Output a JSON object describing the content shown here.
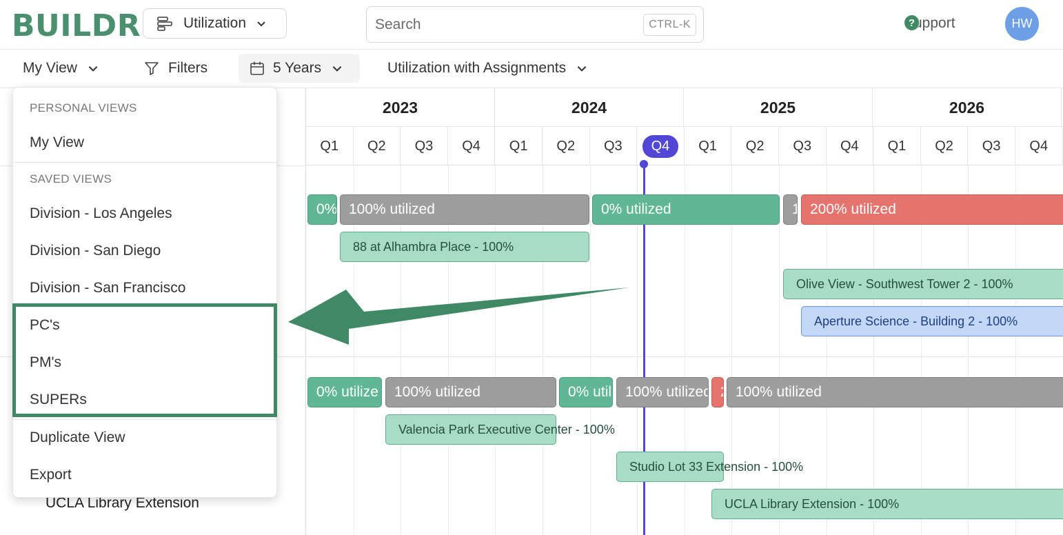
{
  "app": {
    "logo": "BUILDR",
    "module_select": "Utilization",
    "search_placeholder": "Search",
    "search_shortcut": "CTRL-K",
    "support": "Support",
    "avatar_initials": "HW"
  },
  "toolbar": {
    "view": "My View",
    "filters": "Filters",
    "range": "5 Years",
    "mode": "Utilization with Assignments"
  },
  "timeline": {
    "years": [
      "2023",
      "2024",
      "2025",
      "2026"
    ],
    "quarters": [
      "Q1",
      "Q2",
      "Q3",
      "Q4",
      "Q1",
      "Q2",
      "Q3",
      "Q4",
      "Q1",
      "Q2",
      "Q3",
      "Q4",
      "Q1",
      "Q2",
      "Q3",
      "Q4"
    ],
    "current_quarter_index": 7
  },
  "rows": {
    "row1_bars": [
      "0%",
      "100% utilized",
      "0% utilized",
      "1",
      "200% utilized"
    ],
    "row1_assignments": [
      "88 at Alhambra Place - 100%",
      "Olive View - Southwest Tower 2 - 100%",
      "Aperture Science - Building 2 - 100%"
    ],
    "row2_bars": [
      "0% utilize",
      "100% utilized",
      "0% util",
      "100% utilized",
      "2",
      "100% utilized"
    ],
    "row2_assignments": [
      "Valencia Park Executive Center - 100%",
      "Studio Lot 33 Extension - 100%",
      "UCLA Library Extension - 100%"
    ],
    "left_label": "UCLA Library Extension"
  },
  "dropdown": {
    "personal_header": "PERSONAL VIEWS",
    "personal_items": [
      "My View"
    ],
    "saved_header": "SAVED VIEWS",
    "saved_items": [
      "Division - Los Angeles",
      "Division - San Diego",
      "Division - San Francisco",
      "PC's",
      "PM's",
      "SUPERs"
    ],
    "actions": [
      "Duplicate View",
      "Export"
    ]
  },
  "colors": {
    "brand": "#4a8f6e",
    "current": "#5246d6",
    "highlight": "#3f8a64"
  }
}
